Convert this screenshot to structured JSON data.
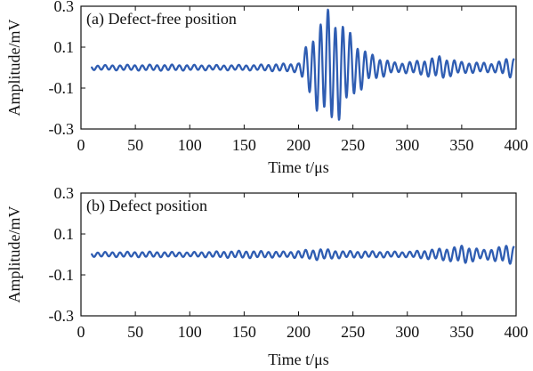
{
  "chart_data": [
    {
      "type": "line",
      "panel_label": "(a) Defect-free position",
      "xlabel": "Time t/μs",
      "ylabel": "Amplitude/mV",
      "xlim": [
        0,
        400
      ],
      "ylim": [
        -0.3,
        0.3
      ],
      "xticks": [
        0,
        50,
        100,
        150,
        200,
        250,
        300,
        350,
        400
      ],
      "yticks": [
        -0.3,
        -0.1,
        0.1,
        0.3
      ],
      "grid": false,
      "series": [
        {
          "color": "#2f5db2",
          "style": "oscillating ultrasonic waveform",
          "envelope_points": [
            {
              "x": 10,
              "y": 0.01
            },
            {
              "x": 40,
              "y": 0.012
            },
            {
              "x": 80,
              "y": 0.013
            },
            {
              "x": 120,
              "y": 0.011
            },
            {
              "x": 160,
              "y": 0.012
            },
            {
              "x": 200,
              "y": 0.02
            },
            {
              "x": 210,
              "y": 0.12
            },
            {
              "x": 220,
              "y": 0.21
            },
            {
              "x": 228,
              "y": 0.25
            },
            {
              "x": 238,
              "y": 0.22
            },
            {
              "x": 250,
              "y": 0.13
            },
            {
              "x": 265,
              "y": 0.06
            },
            {
              "x": 290,
              "y": 0.02
            },
            {
              "x": 310,
              "y": 0.03
            },
            {
              "x": 330,
              "y": 0.05
            },
            {
              "x": 350,
              "y": 0.025
            },
            {
              "x": 380,
              "y": 0.02
            },
            {
              "x": 398,
              "y": 0.05
            }
          ]
        }
      ]
    },
    {
      "type": "line",
      "panel_label": "(b) Defect position",
      "xlabel": "Time t/μs",
      "ylabel": "Amplitude/mV",
      "xlim": [
        0,
        400
      ],
      "ylim": [
        -0.3,
        0.3
      ],
      "xticks": [
        0,
        50,
        100,
        150,
        200,
        250,
        300,
        350,
        400
      ],
      "yticks": [
        -0.3,
        -0.1,
        0.1,
        0.3
      ],
      "grid": false,
      "series": [
        {
          "color": "#2f5db2",
          "style": "oscillating ultrasonic waveform",
          "envelope_points": [
            {
              "x": 10,
              "y": 0.01
            },
            {
              "x": 60,
              "y": 0.012
            },
            {
              "x": 100,
              "y": 0.01
            },
            {
              "x": 150,
              "y": 0.016
            },
            {
              "x": 190,
              "y": 0.012
            },
            {
              "x": 220,
              "y": 0.025
            },
            {
              "x": 240,
              "y": 0.015
            },
            {
              "x": 300,
              "y": 0.012
            },
            {
              "x": 340,
              "y": 0.03
            },
            {
              "x": 352,
              "y": 0.04
            },
            {
              "x": 370,
              "y": 0.02
            },
            {
              "x": 398,
              "y": 0.045
            }
          ]
        }
      ]
    }
  ]
}
